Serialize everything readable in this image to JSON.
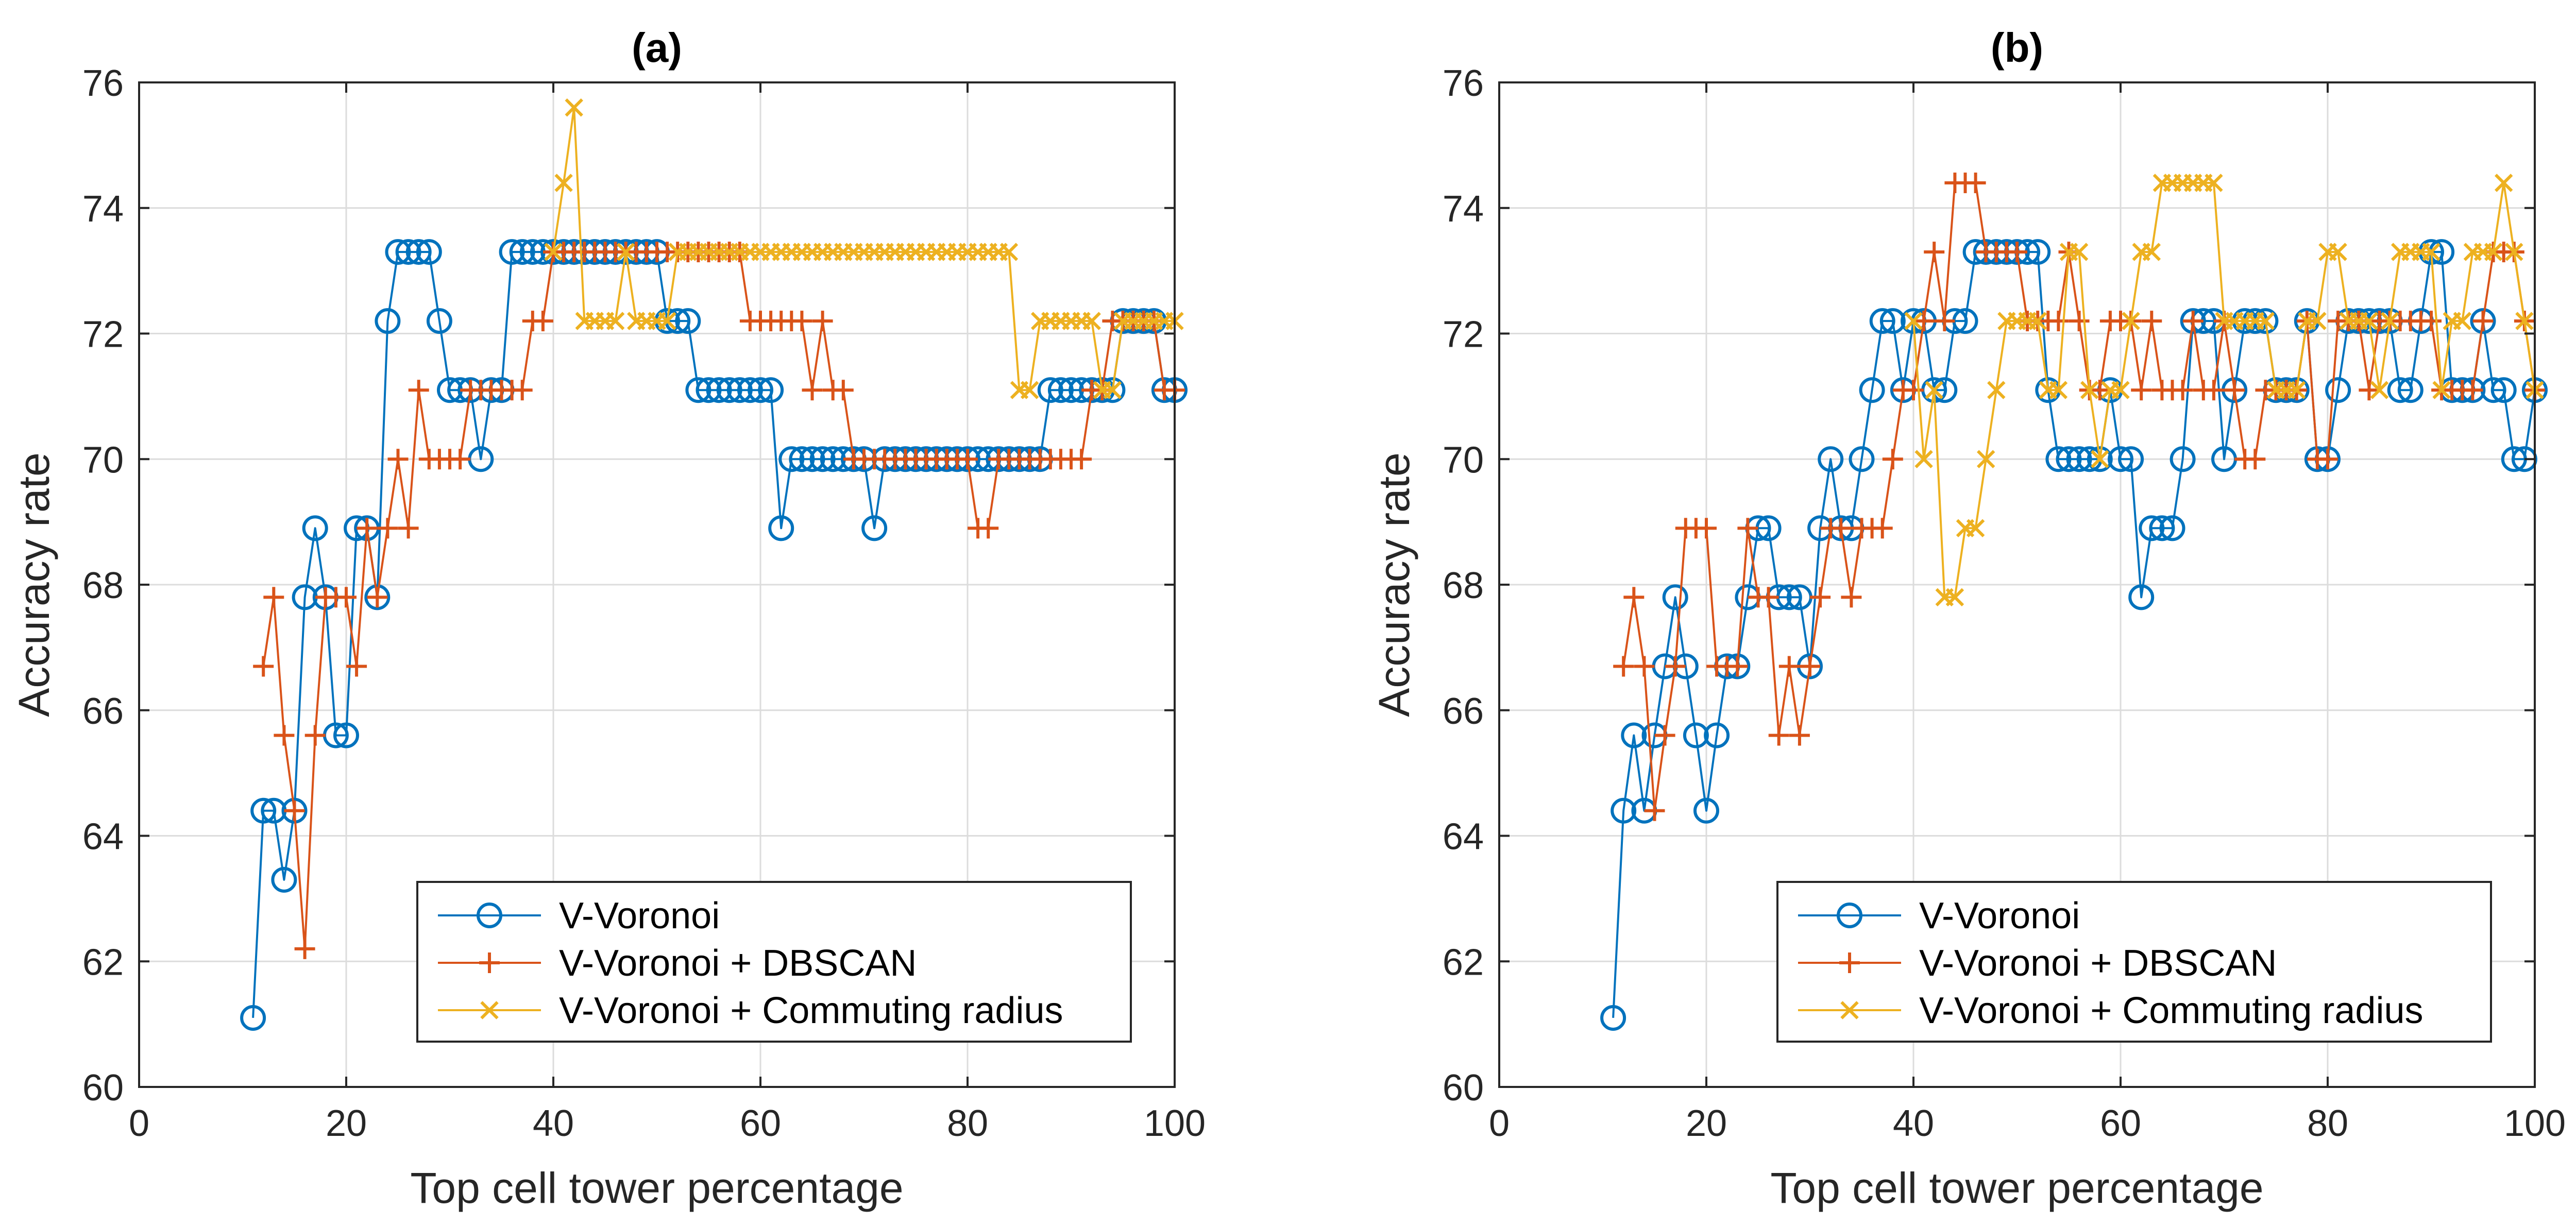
{
  "chart_data": [
    {
      "type": "line",
      "title": "(a)",
      "xlabel": "Top cell tower percentage",
      "ylabel": "Accuracy rate",
      "xlim": [
        0,
        100
      ],
      "ylim": [
        60,
        76
      ],
      "xticks": [
        0,
        20,
        40,
        60,
        80,
        100
      ],
      "yticks": [
        60,
        62,
        64,
        66,
        68,
        70,
        72,
        74,
        76
      ],
      "grid": true,
      "legend_position": "bottom-right",
      "series": [
        {
          "name": "V-Voronoi",
          "color": "#0072BD",
          "marker": "circle",
          "x": [
            11,
            12,
            13,
            14,
            15,
            16,
            17,
            18,
            19,
            20,
            21,
            22,
            23,
            24,
            25,
            26,
            27,
            28,
            29,
            30,
            31,
            32,
            33,
            34,
            35,
            36,
            37,
            38,
            39,
            40,
            41,
            42,
            43,
            44,
            45,
            46,
            47,
            48,
            49,
            50,
            51,
            52,
            53,
            54,
            55,
            56,
            57,
            58,
            59,
            60,
            61,
            62,
            63,
            64,
            65,
            66,
            67,
            68,
            69,
            70,
            71,
            72,
            73,
            74,
            75,
            76,
            77,
            78,
            79,
            80,
            81,
            82,
            83,
            84,
            85,
            86,
            87,
            88,
            89,
            90,
            91,
            92,
            93,
            94,
            95,
            96,
            97,
            98,
            99,
            100
          ],
          "y": [
            61.1,
            64.4,
            64.4,
            63.3,
            64.4,
            67.8,
            68.9,
            67.8,
            65.6,
            65.6,
            68.9,
            68.9,
            67.8,
            72.2,
            73.3,
            73.3,
            73.3,
            73.3,
            72.2,
            71.1,
            71.1,
            71.1,
            70.0,
            71.1,
            71.1,
            73.3,
            73.3,
            73.3,
            73.3,
            73.3,
            73.3,
            73.3,
            73.3,
            73.3,
            73.3,
            73.3,
            73.3,
            73.3,
            73.3,
            73.3,
            72.2,
            72.2,
            72.2,
            71.1,
            71.1,
            71.1,
            71.1,
            71.1,
            71.1,
            71.1,
            71.1,
            68.9,
            70.0,
            70.0,
            70.0,
            70.0,
            70.0,
            70.0,
            70.0,
            70.0,
            68.9,
            70.0,
            70.0,
            70.0,
            70.0,
            70.0,
            70.0,
            70.0,
            70.0,
            70.0,
            70.0,
            70.0,
            70.0,
            70.0,
            70.0,
            70.0,
            70.0,
            71.1,
            71.1,
            71.1,
            71.1,
            71.1,
            71.1,
            71.1,
            72.2,
            72.2,
            72.2,
            72.2,
            71.1,
            71.1
          ]
        },
        {
          "name": "V-Voronoi + DBSCAN",
          "color": "#D95319",
          "marker": "plus",
          "x": [
            12,
            13,
            14,
            15,
            16,
            17,
            18,
            19,
            20,
            21,
            22,
            23,
            24,
            25,
            26,
            27,
            28,
            29,
            30,
            31,
            32,
            33,
            34,
            35,
            36,
            37,
            38,
            39,
            40,
            41,
            42,
            43,
            44,
            45,
            46,
            47,
            48,
            49,
            50,
            51,
            52,
            53,
            54,
            55,
            56,
            57,
            58,
            59,
            60,
            61,
            62,
            63,
            64,
            65,
            66,
            67,
            68,
            69,
            70,
            71,
            72,
            73,
            74,
            75,
            76,
            77,
            78,
            79,
            80,
            81,
            82,
            83,
            84,
            85,
            86,
            87,
            88,
            89,
            90,
            91,
            92,
            93,
            94,
            95,
            96,
            97,
            98,
            99,
            100
          ],
          "y": [
            66.7,
            67.8,
            65.6,
            64.4,
            62.2,
            65.6,
            67.8,
            67.8,
            67.8,
            66.7,
            68.9,
            67.8,
            68.9,
            70.0,
            68.9,
            71.1,
            70.0,
            70.0,
            70.0,
            70.0,
            71.1,
            71.1,
            71.1,
            71.1,
            71.1,
            71.1,
            72.2,
            72.2,
            73.3,
            73.3,
            73.3,
            73.3,
            73.3,
            73.3,
            73.3,
            73.3,
            73.3,
            73.3,
            73.3,
            73.3,
            73.3,
            73.3,
            73.3,
            73.3,
            73.3,
            73.3,
            73.3,
            72.2,
            72.2,
            72.2,
            72.2,
            72.2,
            72.2,
            71.1,
            72.2,
            71.1,
            71.1,
            70.0,
            70.0,
            70.0,
            70.0,
            70.0,
            70.0,
            70.0,
            70.0,
            70.0,
            70.0,
            70.0,
            70.0,
            68.9,
            68.9,
            70.0,
            70.0,
            70.0,
            70.0,
            70.0,
            70.0,
            70.0,
            70.0,
            70.0,
            71.1,
            71.1,
            72.2,
            72.2,
            72.2,
            72.2,
            72.2,
            71.1,
            71.1
          ]
        },
        {
          "name": "V-Voronoi + Commuting radius",
          "color": "#EDB120",
          "marker": "x",
          "x": [
            40,
            41,
            42,
            43,
            44,
            45,
            46,
            47,
            48,
            49,
            50,
            51,
            52,
            53,
            54,
            55,
            56,
            57,
            58,
            59,
            60,
            61,
            62,
            63,
            64,
            65,
            66,
            67,
            68,
            69,
            70,
            71,
            72,
            73,
            74,
            75,
            76,
            77,
            78,
            79,
            80,
            81,
            82,
            83,
            84,
            85,
            86,
            87,
            88,
            89,
            90,
            91,
            92,
            93,
            94,
            95,
            96,
            97,
            98,
            99,
            100
          ],
          "y": [
            73.3,
            74.4,
            75.6,
            72.2,
            72.2,
            72.2,
            72.2,
            73.3,
            72.2,
            72.2,
            72.2,
            72.2,
            73.3,
            73.3,
            73.3,
            73.3,
            73.3,
            73.3,
            73.3,
            73.3,
            73.3,
            73.3,
            73.3,
            73.3,
            73.3,
            73.3,
            73.3,
            73.3,
            73.3,
            73.3,
            73.3,
            73.3,
            73.3,
            73.3,
            73.3,
            73.3,
            73.3,
            73.3,
            73.3,
            73.3,
            73.3,
            73.3,
            73.3,
            73.3,
            73.3,
            71.1,
            71.1,
            72.2,
            72.2,
            72.2,
            72.2,
            72.2,
            72.2,
            71.1,
            71.1,
            72.2,
            72.2,
            72.2,
            72.2,
            72.2,
            72.2
          ]
        }
      ]
    },
    {
      "type": "line",
      "title": "(b)",
      "xlabel": "Top cell tower percentage",
      "ylabel": "Accuracy rate",
      "xlim": [
        0,
        100
      ],
      "ylim": [
        60,
        76
      ],
      "xticks": [
        0,
        20,
        40,
        60,
        80,
        100
      ],
      "yticks": [
        60,
        62,
        64,
        66,
        68,
        70,
        72,
        74,
        76
      ],
      "grid": true,
      "legend_position": "bottom-right",
      "series": [
        {
          "name": "V-Voronoi",
          "color": "#0072BD",
          "marker": "circle",
          "x": [
            11,
            12,
            13,
            14,
            15,
            16,
            17,
            18,
            19,
            20,
            21,
            22,
            23,
            24,
            25,
            26,
            27,
            28,
            29,
            30,
            31,
            32,
            33,
            34,
            35,
            36,
            37,
            38,
            39,
            40,
            41,
            42,
            43,
            44,
            45,
            46,
            47,
            48,
            49,
            50,
            51,
            52,
            53,
            54,
            55,
            56,
            57,
            58,
            59,
            60,
            61,
            62,
            63,
            64,
            65,
            66,
            67,
            68,
            69,
            70,
            71,
            72,
            73,
            74,
            75,
            76,
            77,
            78,
            79,
            80,
            81,
            82,
            83,
            84,
            85,
            86,
            87,
            88,
            89,
            90,
            91,
            92,
            93,
            94,
            95,
            96,
            97,
            98,
            99,
            100
          ],
          "y": [
            61.1,
            64.4,
            65.6,
            64.4,
            65.6,
            66.7,
            67.8,
            66.7,
            65.6,
            64.4,
            65.6,
            66.7,
            66.7,
            67.8,
            68.9,
            68.9,
            67.8,
            67.8,
            67.8,
            66.7,
            68.9,
            70.0,
            68.9,
            68.9,
            70.0,
            71.1,
            72.2,
            72.2,
            71.1,
            72.2,
            72.2,
            71.1,
            71.1,
            72.2,
            72.2,
            73.3,
            73.3,
            73.3,
            73.3,
            73.3,
            73.3,
            73.3,
            71.1,
            70.0,
            70.0,
            70.0,
            70.0,
            70.0,
            71.1,
            70.0,
            70.0,
            67.8,
            68.9,
            68.9,
            68.9,
            70.0,
            72.2,
            72.2,
            72.2,
            70.0,
            71.1,
            72.2,
            72.2,
            72.2,
            71.1,
            71.1,
            71.1,
            72.2,
            70.0,
            70.0,
            71.1,
            72.2,
            72.2,
            72.2,
            72.2,
            72.2,
            71.1,
            71.1,
            72.2,
            73.3,
            73.3,
            71.1,
            71.1,
            71.1,
            72.2,
            71.1,
            71.1,
            70.0,
            70.0,
            71.1
          ]
        },
        {
          "name": "V-Voronoi + DBSCAN",
          "color": "#D95319",
          "marker": "plus",
          "x": [
            12,
            13,
            14,
            15,
            16,
            17,
            18,
            19,
            20,
            21,
            22,
            23,
            24,
            25,
            26,
            27,
            28,
            29,
            30,
            31,
            32,
            33,
            34,
            35,
            36,
            37,
            38,
            39,
            40,
            41,
            42,
            43,
            44,
            45,
            46,
            47,
            48,
            49,
            50,
            51,
            52,
            53,
            54,
            55,
            56,
            57,
            58,
            59,
            60,
            61,
            62,
            63,
            64,
            65,
            66,
            67,
            68,
            69,
            70,
            71,
            72,
            73,
            74,
            75,
            76,
            77,
            78,
            79,
            80,
            81,
            82,
            83,
            84,
            85,
            86,
            87,
            88,
            89,
            90,
            91,
            92,
            93,
            94,
            95,
            96,
            97,
            98,
            99,
            100
          ],
          "y": [
            66.7,
            67.8,
            66.7,
            64.4,
            65.6,
            66.7,
            68.9,
            68.9,
            68.9,
            66.7,
            66.7,
            66.7,
            68.9,
            67.8,
            67.8,
            65.6,
            66.7,
            65.6,
            66.7,
            67.8,
            68.9,
            68.9,
            67.8,
            68.9,
            68.9,
            68.9,
            70.0,
            71.1,
            71.1,
            72.2,
            73.3,
            72.2,
            74.4,
            74.4,
            74.4,
            73.3,
            73.3,
            73.3,
            73.3,
            72.2,
            72.2,
            72.2,
            72.2,
            73.3,
            72.2,
            71.1,
            71.1,
            72.2,
            72.2,
            72.2,
            71.1,
            72.2,
            71.1,
            71.1,
            71.1,
            72.2,
            71.1,
            71.1,
            72.2,
            71.1,
            70.0,
            70.0,
            71.1,
            71.1,
            71.1,
            71.1,
            72.2,
            70.0,
            70.0,
            72.2,
            72.2,
            72.2,
            71.1,
            72.2,
            72.2,
            72.2,
            72.2,
            72.2,
            72.2,
            71.1,
            71.1,
            71.1,
            71.1,
            72.2,
            73.3,
            73.3,
            73.3,
            72.2,
            71.1
          ]
        },
        {
          "name": "V-Voronoi + Commuting radius",
          "color": "#EDB120",
          "marker": "x",
          "x": [
            40,
            41,
            42,
            43,
            44,
            45,
            46,
            47,
            48,
            49,
            50,
            51,
            52,
            53,
            54,
            55,
            56,
            57,
            58,
            59,
            60,
            61,
            62,
            63,
            64,
            65,
            66,
            67,
            68,
            69,
            70,
            71,
            72,
            73,
            74,
            75,
            76,
            77,
            78,
            79,
            80,
            81,
            82,
            83,
            84,
            85,
            86,
            87,
            88,
            89,
            90,
            91,
            92,
            93,
            94,
            95,
            96,
            97,
            98,
            99,
            100
          ],
          "y": [
            72.2,
            70.0,
            71.1,
            67.8,
            67.8,
            68.9,
            68.9,
            70.0,
            71.1,
            72.2,
            72.2,
            72.2,
            72.2,
            71.1,
            71.1,
            73.3,
            73.3,
            71.1,
            70.0,
            71.1,
            71.1,
            72.2,
            73.3,
            73.3,
            74.4,
            74.4,
            74.4,
            74.4,
            74.4,
            74.4,
            72.2,
            72.2,
            72.2,
            72.2,
            72.2,
            71.1,
            71.1,
            71.1,
            72.2,
            72.2,
            73.3,
            73.3,
            72.2,
            72.2,
            72.2,
            71.1,
            72.2,
            73.3,
            73.3,
            73.3,
            73.3,
            71.1,
            72.2,
            72.2,
            73.3,
            73.3,
            73.3,
            74.4,
            73.3,
            72.2,
            71.1
          ]
        }
      ]
    }
  ]
}
